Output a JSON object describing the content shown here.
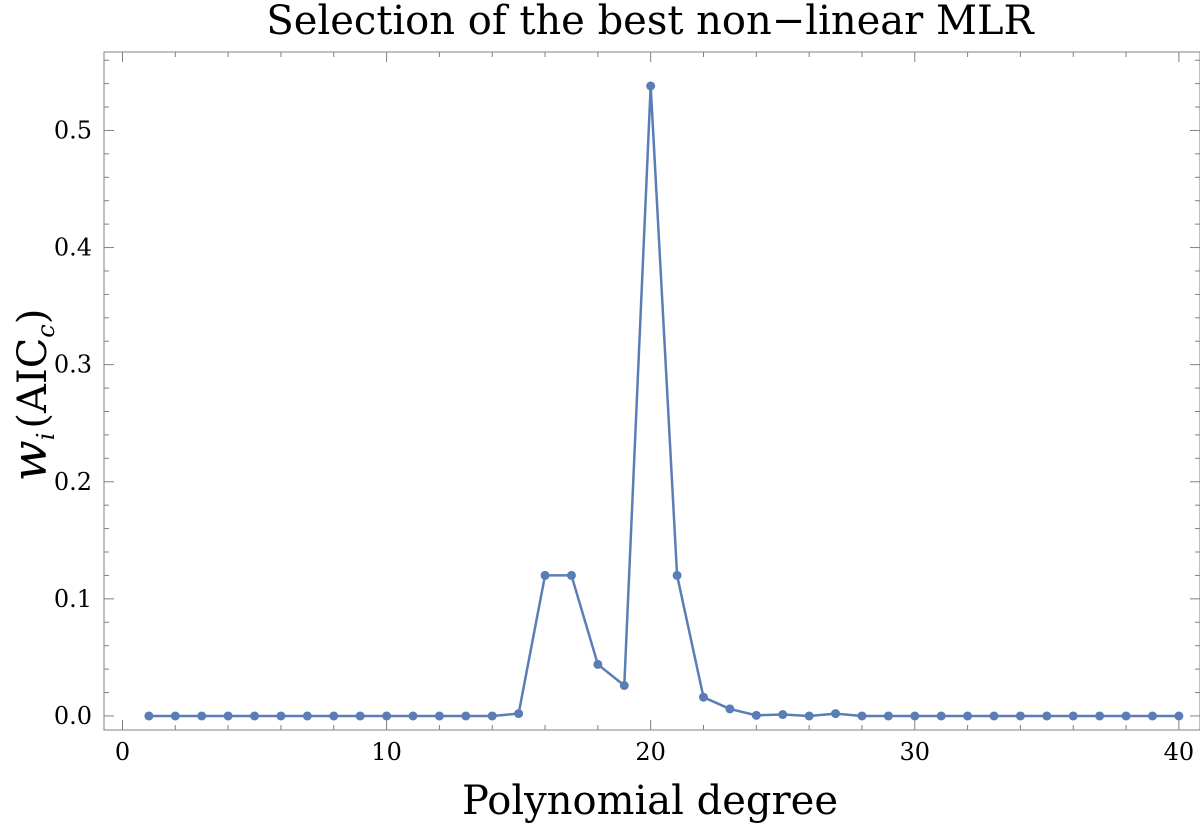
{
  "chart_data": {
    "type": "line",
    "title": "Selection of the best non−linear MLR",
    "xlabel": "Polynomial degree",
    "ylabel": {
      "symbol": "w",
      "symbol_subscript": "i",
      "open": "(",
      "text": "AIC",
      "text_subscript": "c",
      "close": ")"
    },
    "xlim": [
      -0.7,
      40.8
    ],
    "ylim": [
      -0.012,
      0.567
    ],
    "x_ticks": [
      0,
      10,
      20,
      30,
      40
    ],
    "x_tick_labels": [
      "0",
      "10",
      "20",
      "30",
      "40"
    ],
    "y_ticks": [
      0.0,
      0.1,
      0.2,
      0.3,
      0.4,
      0.5
    ],
    "y_tick_labels": [
      "0.0",
      "0.1",
      "0.2",
      "0.3",
      "0.4",
      "0.5"
    ],
    "x_minor_step": 2,
    "y_minor_step": 0.02,
    "grid": false,
    "color": "#5b7db6",
    "x": [
      1,
      2,
      3,
      4,
      5,
      6,
      7,
      8,
      9,
      10,
      11,
      12,
      13,
      14,
      15,
      16,
      17,
      18,
      19,
      20,
      21,
      22,
      23,
      24,
      25,
      26,
      27,
      28,
      29,
      30,
      31,
      32,
      33,
      34,
      35,
      36,
      37,
      38,
      39,
      40
    ],
    "y": [
      0,
      0,
      0,
      0,
      0,
      0,
      0,
      0,
      0,
      0,
      0,
      0,
      0,
      0,
      0.002,
      0.12,
      0.12,
      0.044,
      0.026,
      0.538,
      0.12,
      0.016,
      0.006,
      0.0005,
      0.0012,
      0,
      0.002,
      0,
      0,
      0,
      0,
      0,
      0,
      0,
      0,
      0,
      0,
      0,
      0,
      0
    ]
  }
}
